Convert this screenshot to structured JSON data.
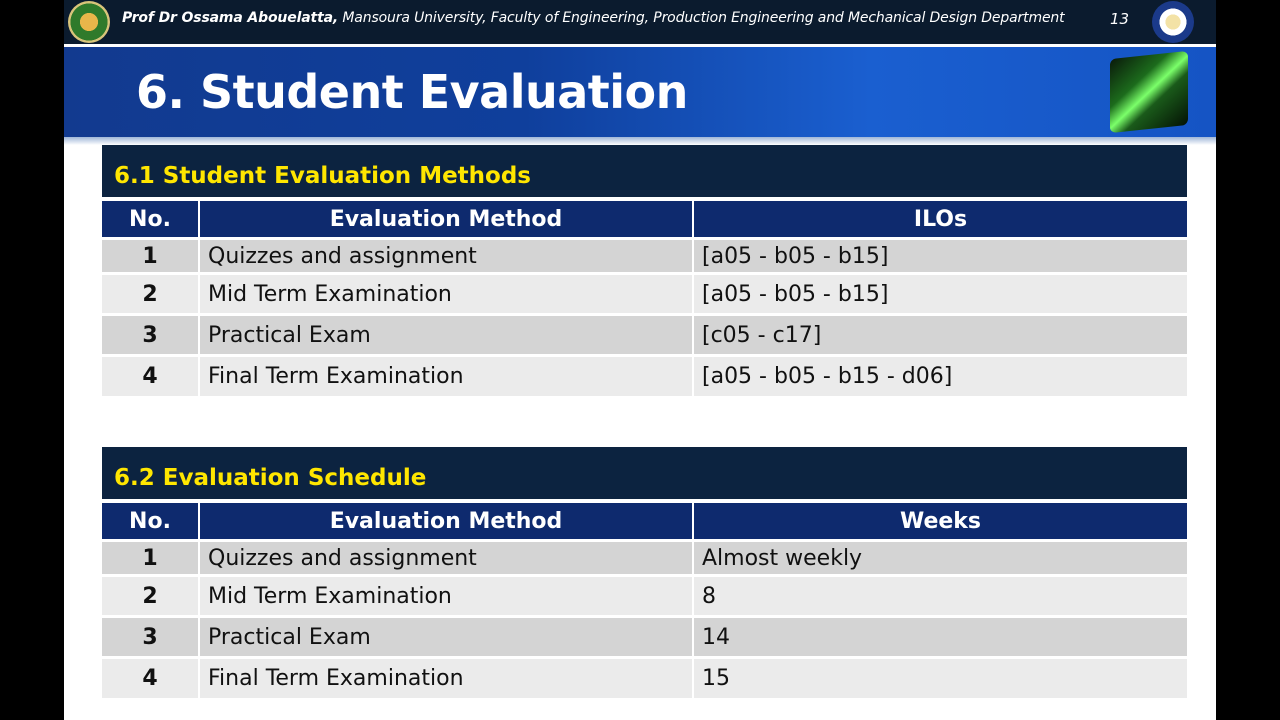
{
  "header": {
    "author": "Prof Dr  Ossama Abouelatta,",
    "affiliation": " Mansoura University, Faculty of Engineering, Production Engineering and Mechanical Design Department",
    "page_number": "13"
  },
  "title": "6. Student Evaluation",
  "section1": {
    "heading": "6.1 Student Evaluation Methods",
    "columns": [
      "No.",
      "Evaluation Method",
      "ILOs"
    ],
    "rows": [
      [
        "1",
        "Quizzes and assignment",
        "[a05 - b05 - b15]"
      ],
      [
        "2",
        "Mid Term Examination",
        "[a05 - b05 - b15]"
      ],
      [
        "3",
        "Practical Exam",
        "[c05 - c17]"
      ],
      [
        "4",
        "Final Term Examination",
        "[a05 - b05 - b15 - d06]"
      ]
    ]
  },
  "section2": {
    "heading": "6.2 Evaluation Schedule",
    "columns": [
      "No.",
      "Evaluation Method",
      "Weeks"
    ],
    "rows": [
      [
        "1",
        "Quizzes and assignment",
        "Almost weekly"
      ],
      [
        "2",
        "Mid Term Examination",
        "8"
      ],
      [
        "3",
        "Practical Exam",
        "14"
      ],
      [
        "4",
        "Final Term Examination",
        "15"
      ]
    ]
  },
  "colors": {
    "section_heading_bg": "#0c2340",
    "section_heading_text": "#ffe600",
    "table_header_bg": "#0e2a6e",
    "row_odd": "#d4d4d4",
    "row_even": "#ebebeb"
  }
}
